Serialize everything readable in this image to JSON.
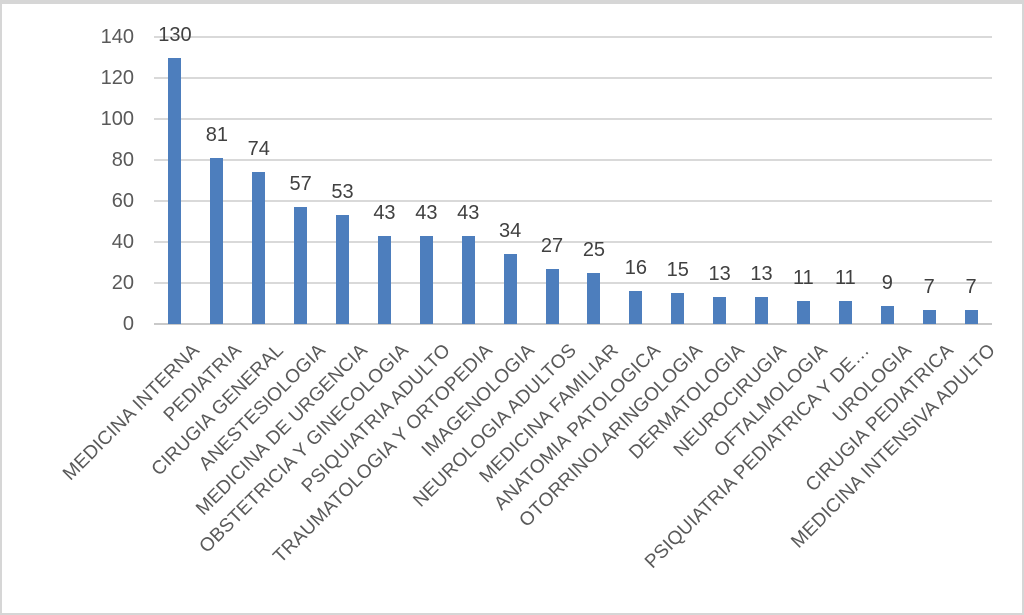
{
  "chart_data": {
    "type": "bar",
    "title": "",
    "xlabel": "",
    "ylabel": "",
    "categories": [
      "MEDICINA INTERNA",
      "PEDIATRIA",
      "CIRUGIA GENERAL",
      "ANESTESIOLOGIA",
      "MEDICINA DE URGENCIA",
      "OBSTETRICIA Y GINECOLOGIA",
      "PSIQUIATRIA ADULTO",
      "TRAUMATOLOGIA Y ORTOPEDIA",
      "IMAGENOLOGIA",
      "NEUROLOGIA ADULTOS",
      "MEDICINA FAMILIAR",
      "ANATOMIA PATOLOGICA",
      "OTORRINOLARINGOLOGIA",
      "DERMATOLOGIA",
      "NEUROCIRUGIA",
      "OFTALMOLOGIA",
      "PSIQUIATRIA PEDIATRICA Y DE…",
      "UROLOGIA",
      "CIRUGIA PEDIATRICA",
      "MEDICINA INTENSIVA ADULTO"
    ],
    "values": [
      130,
      81,
      74,
      57,
      53,
      43,
      43,
      43,
      34,
      27,
      25,
      16,
      15,
      13,
      13,
      11,
      11,
      9,
      7,
      7
    ],
    "data_labels": [
      "130",
      "81",
      "74",
      "57",
      "53",
      "43",
      "43",
      "43",
      "34",
      "27",
      "25",
      "16",
      "15",
      "13",
      "13",
      "11",
      "11",
      "9",
      "7",
      "7"
    ],
    "yticks": [
      0,
      20,
      40,
      60,
      80,
      100,
      120,
      140
    ],
    "ylim": [
      0,
      140
    ],
    "grid": true,
    "legend": false,
    "legend_position": "none",
    "bar_color": "#4d7ebd",
    "data_label_color": "#404040",
    "axis_text_color": "#595959",
    "gridline_color": "#d9d9d9",
    "axis_line_color": "#c9c9c9"
  }
}
